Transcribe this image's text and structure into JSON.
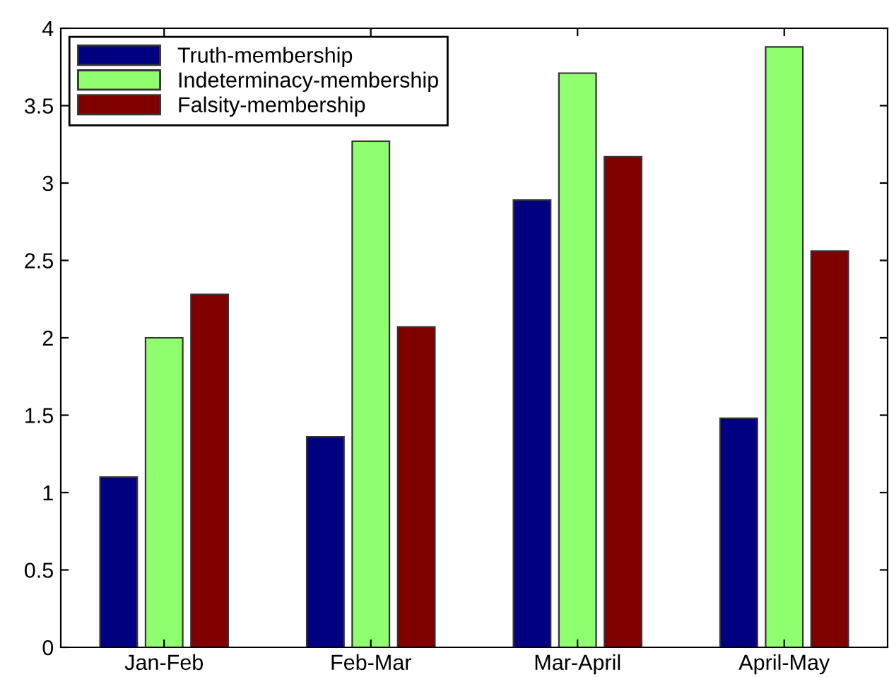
{
  "chart_data": {
    "type": "bar",
    "categories": [
      "Jan-Feb",
      "Feb-Mar",
      "Mar-April",
      "April-May"
    ],
    "series": [
      {
        "name": "Truth-membership",
        "color": "#000080",
        "values": [
          1.1,
          1.36,
          2.89,
          1.48
        ]
      },
      {
        "name": "Indeterminacy-membership",
        "color": "#8fff6f",
        "values": [
          2.0,
          3.27,
          3.71,
          3.88
        ]
      },
      {
        "name": "Falsity-membership",
        "color": "#800000",
        "values": [
          2.28,
          2.07,
          3.17,
          2.56
        ]
      }
    ],
    "ylim": [
      0,
      4
    ],
    "yticks": [
      0,
      0.5,
      1,
      1.5,
      2,
      2.5,
      3,
      3.5,
      4
    ],
    "grid": false,
    "legend": "top left"
  }
}
